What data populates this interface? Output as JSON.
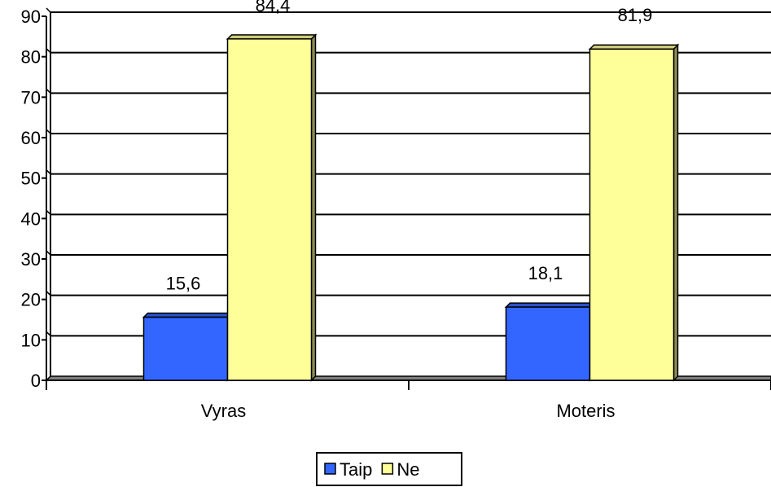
{
  "chart_data": {
    "type": "bar",
    "categories": [
      "Vyras",
      "Moteris"
    ],
    "series": [
      {
        "name": "Taip",
        "values": [
          15.6,
          18.1
        ],
        "labels": [
          "15,6",
          "18,1"
        ],
        "color": "#3366ff"
      },
      {
        "name": "Ne",
        "values": [
          84.4,
          81.9
        ],
        "labels": [
          "84,4",
          "81,9"
        ],
        "color": "#ffff99"
      }
    ],
    "yticks": [
      "0",
      "10",
      "20",
      "30",
      "40",
      "50",
      "60",
      "70",
      "80",
      "90"
    ],
    "ylim": [
      0,
      90
    ],
    "grid": true,
    "legend": "bottom",
    "three_d": true
  }
}
